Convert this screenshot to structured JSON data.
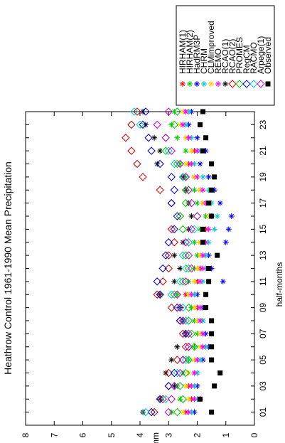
{
  "chart_data": {
    "type": "scatter",
    "title": "Heathrow Control 1961-1990 Mean Precipitation",
    "xlabel": "half-months",
    "ylabel": "mm",
    "xlim": [
      0,
      24
    ],
    "ylim": [
      0,
      8
    ],
    "x_ticks": [
      "01",
      "03",
      "05",
      "07",
      "09",
      "11",
      "13",
      "15",
      "17",
      "19",
      "21",
      "23"
    ],
    "y_ticks": [
      "0",
      "1",
      "2",
      "3",
      "4",
      "5",
      "6",
      "7",
      "8"
    ],
    "legend_position": "top-right",
    "orientation": "rotated-90-ccw",
    "x": [
      1,
      2,
      3,
      4,
      5,
      6,
      7,
      8,
      9,
      10,
      11,
      12,
      13,
      14,
      15,
      16,
      17,
      18,
      19,
      20,
      21,
      22,
      23,
      24
    ],
    "series": [
      {
        "name": "HIRHAM(1)",
        "color": "#ff0000",
        "marker": "star",
        "values": [
          2.4,
          2.2,
          2.3,
          2.1,
          2.0,
          1.8,
          1.8,
          1.9,
          2.0,
          2.4,
          2.0,
          1.9,
          1.8,
          1.9,
          1.7,
          1.5,
          1.8,
          1.9,
          2.1,
          2.3,
          2.1,
          2.3,
          2.5,
          2.4
        ]
      },
      {
        "name": "HIRHAM(2)",
        "color": "#00cc00",
        "marker": "star",
        "values": [
          2.9,
          2.6,
          2.7,
          2.5,
          2.3,
          2.1,
          2.0,
          2.1,
          2.2,
          2.7,
          2.3,
          2.1,
          2.0,
          2.1,
          1.9,
          1.7,
          2.0,
          2.1,
          2.4,
          2.6,
          2.4,
          2.7,
          2.9,
          2.8
        ]
      },
      {
        "name": "HadRM3P",
        "color": "#0000ff",
        "marker": "star",
        "values": [
          2.1,
          1.9,
          2.0,
          2.0,
          1.8,
          1.6,
          1.7,
          1.8,
          1.8,
          2.0,
          1.1,
          1.5,
          1.6,
          1.0,
          0.9,
          0.8,
          1.2,
          1.4,
          1.6,
          1.9,
          1.7,
          2.0,
          2.3,
          2.2
        ]
      },
      {
        "name": "CHRM",
        "color": "#00cccc",
        "marker": "star",
        "values": [
          2.2,
          2.0,
          2.1,
          2.0,
          1.9,
          1.7,
          1.8,
          1.8,
          1.9,
          2.1,
          1.8,
          1.7,
          1.7,
          1.6,
          1.4,
          1.3,
          1.5,
          1.6,
          1.8,
          2.1,
          1.9,
          2.2,
          2.4,
          2.3
        ]
      },
      {
        "name": "CLMimproved",
        "color": "#ffcc00",
        "marker": "star",
        "values": [
          2.5,
          2.3,
          2.4,
          2.3,
          2.1,
          1.9,
          1.9,
          2.0,
          2.1,
          2.3,
          2.1,
          2.0,
          1.9,
          1.9,
          1.8,
          1.6,
          1.8,
          1.9,
          2.1,
          2.4,
          2.2,
          2.4,
          2.6,
          2.5
        ]
      },
      {
        "name": "REMO",
        "color": "#ff00ff",
        "marker": "star",
        "values": [
          2.3,
          2.1,
          2.2,
          2.1,
          2.0,
          1.8,
          1.8,
          1.9,
          1.9,
          2.2,
          1.9,
          1.8,
          1.8,
          1.7,
          1.6,
          1.5,
          1.7,
          1.8,
          2.0,
          2.2,
          2.0,
          2.3,
          2.5,
          2.4
        ]
      },
      {
        "name": "RCAO(1)",
        "color": "#000000",
        "marker": "star",
        "values": [
          3.9,
          3.3,
          2.8,
          3.1,
          2.9,
          2.7,
          2.4,
          2.5,
          2.6,
          3.3,
          2.8,
          2.6,
          2.8,
          2.5,
          2.3,
          2.2,
          2.3,
          2.4,
          2.5,
          3.4,
          3.3,
          3.5,
          3.8,
          3.9
        ]
      },
      {
        "name": "RCAO(2)",
        "color": "#cc0000",
        "marker": "diamond",
        "values": [
          3.5,
          3.2,
          3.0,
          3.0,
          2.7,
          2.4,
          2.5,
          2.6,
          2.9,
          3.4,
          3.2,
          3.0,
          3.0,
          2.8,
          2.9,
          2.6,
          2.9,
          3.3,
          3.9,
          4.1,
          4.3,
          4.5,
          4.3,
          4.1
        ]
      },
      {
        "name": "PROMES",
        "color": "#00cc00",
        "marker": "diamond",
        "values": [
          2.7,
          2.5,
          2.6,
          2.4,
          2.3,
          2.1,
          2.2,
          2.3,
          2.3,
          2.8,
          2.5,
          2.3,
          2.4,
          2.3,
          2.5,
          2.6,
          2.4,
          2.4,
          2.5,
          2.7,
          3.1,
          3.1,
          2.8,
          2.7
        ]
      },
      {
        "name": "RegCM",
        "color": "#0000cc",
        "marker": "diamond",
        "values": [
          3.6,
          3.3,
          3.0,
          2.8,
          2.5,
          2.3,
          2.4,
          2.6,
          2.7,
          3.3,
          3.4,
          3.2,
          3.1,
          3.0,
          2.8,
          2.7,
          2.9,
          2.8,
          2.9,
          3.3,
          3.6,
          3.7,
          3.9,
          3.8
        ]
      },
      {
        "name": "RACMO",
        "color": "#00cccc",
        "marker": "diamond",
        "values": [
          3.8,
          3.1,
          2.8,
          2.7,
          2.4,
          2.3,
          2.3,
          2.4,
          2.5,
          2.9,
          2.6,
          2.4,
          2.5,
          2.3,
          2.1,
          2.0,
          2.2,
          2.3,
          2.5,
          2.8,
          3.0,
          3.1,
          4.0,
          4.2
        ]
      },
      {
        "name": "Arpege(1)",
        "color": "#cc00cc",
        "marker": "diamond",
        "values": [
          3.0,
          2.9,
          2.8,
          2.6,
          2.5,
          2.3,
          2.3,
          2.5,
          2.6,
          2.7,
          2.4,
          2.2,
          2.3,
          2.4,
          2.2,
          2.0,
          2.2,
          2.3,
          2.4,
          2.6,
          2.9,
          3.1,
          3.4,
          3.0
        ]
      },
      {
        "name": "Observed",
        "color": "#000000",
        "marker": "square",
        "values": [
          1.5,
          1.9,
          1.4,
          1.2,
          1.5,
          1.5,
          1.5,
          1.5,
          1.7,
          1.7,
          1.6,
          1.6,
          1.3,
          1.8,
          1.8,
          1.5,
          1.6,
          1.5,
          1.4,
          1.5,
          1.8,
          1.7,
          1.9,
          1.8
        ]
      }
    ]
  }
}
